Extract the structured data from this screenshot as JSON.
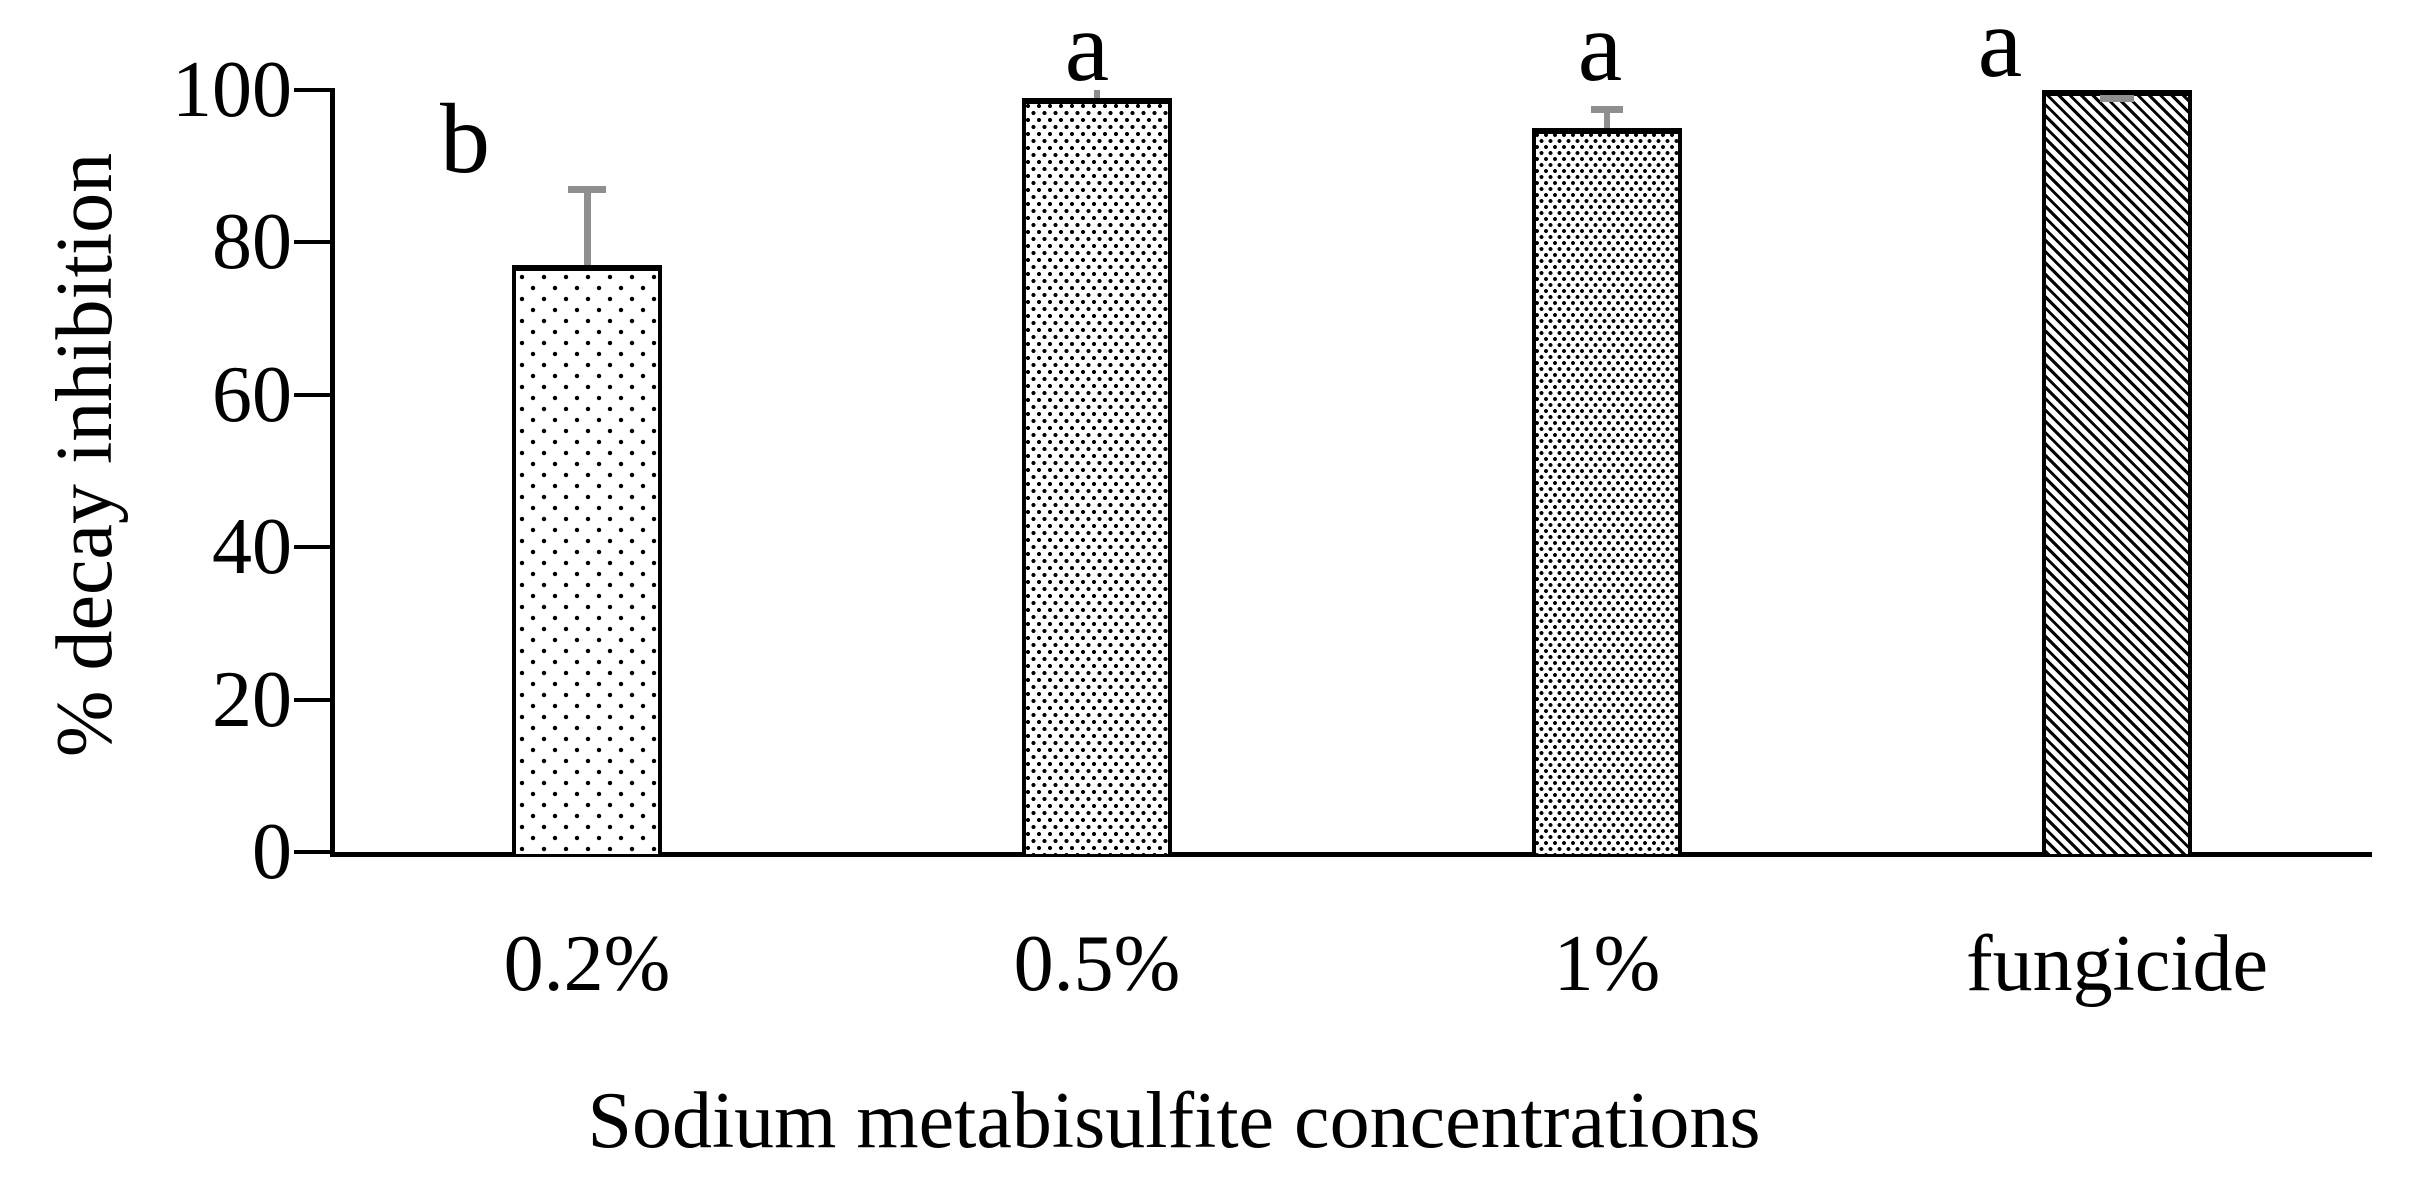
{
  "chart_data": {
    "type": "bar",
    "title": "",
    "categories": [
      "0.2%",
      "0.5%",
      "1%",
      "fungicide"
    ],
    "values": [
      77,
      99,
      95,
      100
    ],
    "error_plus": [
      10,
      1,
      2.5,
      0.5
    ],
    "significance_letters": [
      "b",
      "a",
      "a",
      "a"
    ],
    "ylabel": "% decay inhibition",
    "xlabel": "Sodium metabisulfite concentrations",
    "ylim": [
      0,
      100
    ],
    "yticks": [
      0,
      20,
      40,
      60,
      80,
      100
    ],
    "grid": false,
    "legend": false,
    "bar_patterns": [
      "dots-sparse",
      "dots-medium",
      "dots-dense",
      "diagonal-hatch"
    ],
    "bar_fill": "#ffffff",
    "bar_border_color": "#000000",
    "error_bar_color": "#8f8f8f",
    "axis_color": "#000000",
    "background": "#ffffff"
  }
}
